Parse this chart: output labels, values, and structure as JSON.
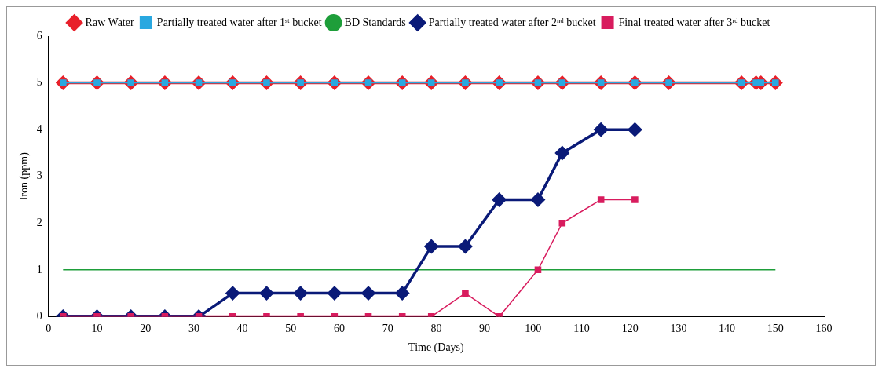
{
  "chart_data": {
    "type": "line",
    "xlabel": "Time (Days)",
    "ylabel": "Iron (ppm)",
    "xlim": [
      0,
      160
    ],
    "xticks": [
      0,
      10,
      20,
      30,
      40,
      50,
      60,
      70,
      80,
      90,
      100,
      110,
      120,
      130,
      140,
      150,
      160
    ],
    "ylim": [
      0,
      6
    ],
    "yticks": [
      0,
      1,
      2,
      3,
      4,
      5,
      6
    ],
    "grid": false,
    "legend": "top",
    "line_style": "solid",
    "series": [
      {
        "name": "Raw Water",
        "color": "#e8202a",
        "marker": "diamond",
        "x": [
          3,
          10,
          17,
          24,
          31,
          38,
          45,
          52,
          59,
          66,
          73,
          79,
          86,
          93,
          101,
          106,
          114,
          121,
          128,
          143,
          146,
          147,
          150
        ],
        "values": [
          5,
          5,
          5,
          5,
          5,
          5,
          5,
          5,
          5,
          5,
          5,
          5,
          5,
          5,
          5,
          5,
          5,
          5,
          5,
          5,
          5,
          5,
          5
        ]
      },
      {
        "name": "Partially treated water after 1ˢᵗ bucket",
        "color": "#29a8e0",
        "marker": "square",
        "x": [
          3,
          10,
          17,
          24,
          31,
          38,
          45,
          52,
          59,
          66,
          73,
          79,
          86,
          93,
          101,
          106,
          114,
          121,
          128,
          143,
          146,
          147,
          150
        ],
        "values": [
          5,
          5,
          5,
          5,
          5,
          5,
          5,
          5,
          5,
          5,
          5,
          5,
          5,
          5,
          5,
          5,
          5,
          5,
          5,
          5,
          5,
          5,
          5
        ]
      },
      {
        "name": "BD Standards",
        "color": "#1e9e3a",
        "marker": "none",
        "x": [
          3,
          150
        ],
        "values": [
          1,
          1
        ]
      },
      {
        "name": "Partially treated water after 2ⁿᵈ bucket",
        "color": "#0a1a78",
        "marker": "diamond",
        "x": [
          3,
          10,
          17,
          24,
          31,
          38,
          45,
          52,
          59,
          66,
          73,
          79,
          86,
          93,
          101,
          106,
          114,
          121
        ],
        "values": [
          0,
          0,
          0,
          0,
          0,
          0.5,
          0.5,
          0.5,
          0.5,
          0.5,
          0.5,
          1.5,
          1.5,
          2.5,
          2.5,
          3.5,
          4,
          4
        ]
      },
      {
        "name": "Final treated water after 3ʳᵈ bucket",
        "color": "#d81c5e",
        "marker": "square",
        "x": [
          3,
          10,
          17,
          24,
          31,
          38,
          45,
          52,
          59,
          66,
          73,
          79,
          86,
          93,
          101,
          106,
          114,
          121
        ],
        "values": [
          0,
          0,
          0,
          0,
          0,
          0,
          0,
          0,
          0,
          0,
          0,
          0,
          0.5,
          0,
          1,
          2,
          2.5,
          2.5
        ]
      }
    ]
  }
}
